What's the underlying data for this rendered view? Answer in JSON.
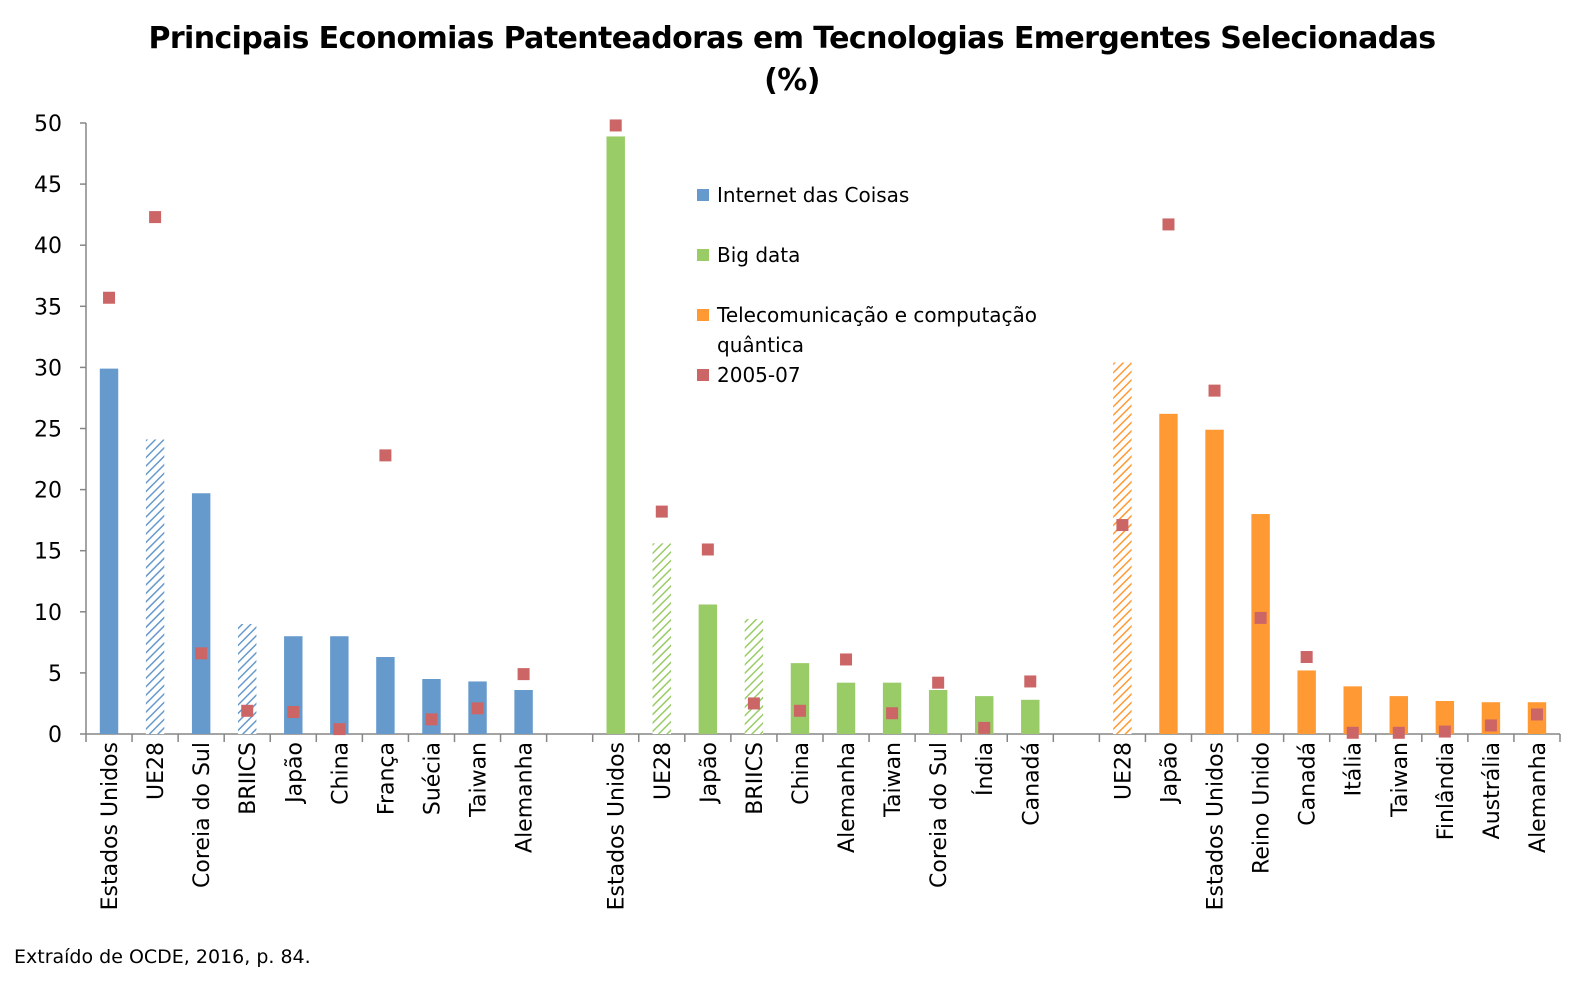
{
  "title_line1": "Principais Economias Patenteadoras em Tecnologias Emergentes Selecionadas",
  "title_line2": "(%)",
  "source": "Extraído de OCDE, 2016, p. 84.",
  "chart_data": {
    "type": "bar",
    "ylim": [
      0,
      50
    ],
    "yticks": [
      0,
      5,
      10,
      15,
      20,
      25,
      30,
      35,
      40,
      45,
      50
    ],
    "grid": false,
    "legend_position": "top-center",
    "legend": [
      {
        "label": "Internet das Coisas",
        "color": "#6699CC",
        "marker": "square"
      },
      {
        "label": "Big data",
        "color": "#99CC66",
        "marker": "square"
      },
      {
        "label_line1": "Telecomunicação e computação",
        "label_line2": "quântica",
        "color": "#FF9933",
        "marker": "square"
      },
      {
        "label": "2005-07",
        "color": "#CC6666",
        "marker": "square"
      }
    ],
    "groups": [
      {
        "series": "Internet das Coisas",
        "color": "#6699CC",
        "categories": [
          "Estados Unidos",
          "UE28",
          "Coreia do Sul",
          "BRIICS",
          "Japão",
          "China",
          "França",
          "Suécia",
          "Taiwan",
          "Alemanha"
        ],
        "values": [
          29.9,
          24.1,
          19.7,
          9.0,
          8.0,
          8.0,
          6.3,
          4.5,
          4.3,
          3.6
        ],
        "hatched": [
          false,
          true,
          false,
          true,
          false,
          false,
          false,
          false,
          false,
          false
        ],
        "values_2005_07": [
          35.7,
          42.3,
          6.6,
          1.9,
          1.8,
          0.4,
          22.8,
          1.2,
          2.1,
          4.9
        ]
      },
      {
        "series": "Big data",
        "color": "#99CC66",
        "categories": [
          "Estados Unidos",
          "UE28",
          "Japão",
          "BRIICS",
          "China",
          "Alemanha",
          "Taiwan",
          "Coreia do Sul",
          "Índia",
          "Canadá"
        ],
        "values": [
          48.9,
          15.6,
          10.6,
          9.4,
          5.8,
          4.2,
          4.2,
          3.6,
          3.1,
          2.8
        ],
        "hatched": [
          false,
          true,
          false,
          true,
          false,
          false,
          false,
          false,
          false,
          false
        ],
        "values_2005_07": [
          49.8,
          18.2,
          15.1,
          2.5,
          1.9,
          6.1,
          1.7,
          4.2,
          0.5,
          4.3
        ]
      },
      {
        "series": "Telecomunicação e computação quântica",
        "color": "#FF9933",
        "categories": [
          "UE28",
          "Japão",
          "Estados Unidos",
          "Reino Unido",
          "Canadá",
          "Itália",
          "Taiwan",
          "Finlândia",
          "Austrália",
          "Alemanha"
        ],
        "values": [
          30.4,
          26.2,
          24.9,
          18.0,
          5.2,
          3.9,
          3.1,
          2.7,
          2.6,
          2.6
        ],
        "hatched": [
          true,
          false,
          false,
          false,
          false,
          false,
          false,
          false,
          false,
          false
        ],
        "values_2005_07": [
          17.1,
          41.7,
          28.1,
          9.5,
          6.3,
          0.1,
          0.1,
          0.2,
          0.7,
          1.6
        ]
      }
    ]
  }
}
